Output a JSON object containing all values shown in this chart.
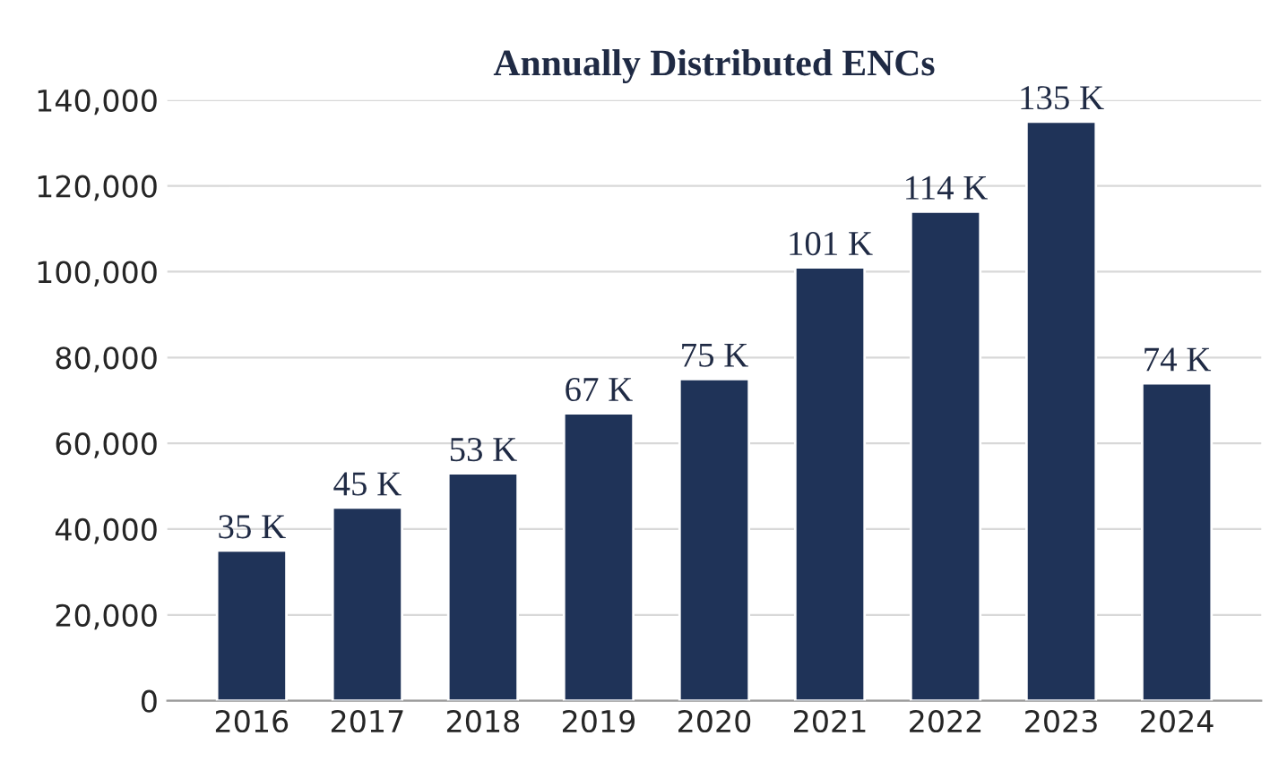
{
  "chart_data": {
    "type": "bar",
    "title": "Annually Distributed ENCs",
    "categories": [
      "2016",
      "2017",
      "2018",
      "2019",
      "2020",
      "2021",
      "2022",
      "2023",
      "2024"
    ],
    "values": [
      35000,
      45000,
      53000,
      67000,
      75000,
      101000,
      114000,
      135000,
      74000
    ],
    "value_labels": [
      "35 K",
      "45 K",
      "53 K",
      "67 K",
      "75 K",
      "101 K",
      "114 K",
      "135 K",
      "74 K"
    ],
    "color": "#1f3358",
    "ylim": [
      0,
      140000
    ],
    "yticks": [
      {
        "value": 0,
        "label": "0"
      },
      {
        "value": 20000,
        "label": "20,000"
      },
      {
        "value": 40000,
        "label": "40,000"
      },
      {
        "value": 60000,
        "label": "60,000"
      },
      {
        "value": 80000,
        "label": "80,000"
      },
      {
        "value": 100000,
        "label": "100,000"
      },
      {
        "value": 120000,
        "label": "120,000"
      },
      {
        "value": 140000,
        "label": "140,000"
      }
    ],
    "grid": "y"
  }
}
